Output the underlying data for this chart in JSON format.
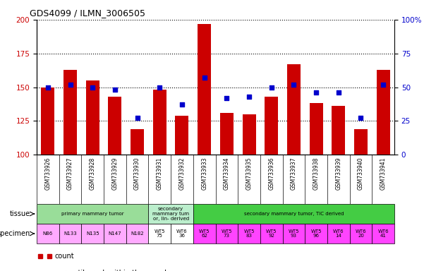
{
  "title": "GDS4099 / ILMN_3006505",
  "samples": [
    "GSM733926",
    "GSM733927",
    "GSM733928",
    "GSM733929",
    "GSM733930",
    "GSM733931",
    "GSM733932",
    "GSM733933",
    "GSM733934",
    "GSM733935",
    "GSM733936",
    "GSM733937",
    "GSM733938",
    "GSM733939",
    "GSM733940",
    "GSM733941"
  ],
  "counts": [
    150,
    163,
    155,
    143,
    119,
    148,
    129,
    197,
    131,
    130,
    143,
    167,
    138,
    136,
    119,
    163
  ],
  "percentiles": [
    50,
    52,
    50,
    48,
    27,
    50,
    37,
    57,
    42,
    43,
    50,
    52,
    46,
    46,
    27,
    52
  ],
  "ylim_left": [
    100,
    200
  ],
  "ylim_right": [
    0,
    100
  ],
  "yticks_left": [
    100,
    125,
    150,
    175,
    200
  ],
  "yticks_right": [
    0,
    25,
    50,
    75,
    100
  ],
  "bar_color": "#cc0000",
  "dot_color": "#0000cc",
  "tissue_groups": [
    {
      "label": "primary mammary tumor",
      "start": 0,
      "end": 5,
      "color": "#99dd99"
    },
    {
      "label": "secondary\nmammary tum\nor, lin- derived",
      "start": 5,
      "end": 7,
      "color": "#bbeecc"
    },
    {
      "label": "secondary mammary tumor, TIC derived",
      "start": 7,
      "end": 16,
      "color": "#44cc44"
    }
  ],
  "specimen_labels": [
    "N86",
    "N133",
    "N135",
    "N147",
    "N182",
    "WT5\n75",
    "WT6\n36",
    "WT5\n62",
    "WT5\n73",
    "WT5\n83",
    "WT5\n92",
    "WT5\n93",
    "WT5\n96",
    "WT6\n14",
    "WT6\n20",
    "WT6\n41"
  ],
  "specimen_group_colors": [
    "#ffaaff",
    "#ffaaff",
    "#ffaaff",
    "#ffaaff",
    "#ffaaff",
    "#ffffff",
    "#ffffff",
    "#ff44ff",
    "#ff44ff",
    "#ff44ff",
    "#ff44ff",
    "#ff44ff",
    "#ff44ff",
    "#ff44ff",
    "#ff44ff",
    "#ff44ff"
  ],
  "legend_count_color": "#cc0000",
  "legend_pct_color": "#0000cc",
  "tissue_row_label": "tissue",
  "specimen_row_label": "specimen",
  "background_color": "#ffffff",
  "plot_bg_color": "#ffffff",
  "xticklabel_bg": "#dddddd",
  "grid_color": "#000000",
  "grid_linestyle": ":",
  "grid_linewidth": 0.8
}
